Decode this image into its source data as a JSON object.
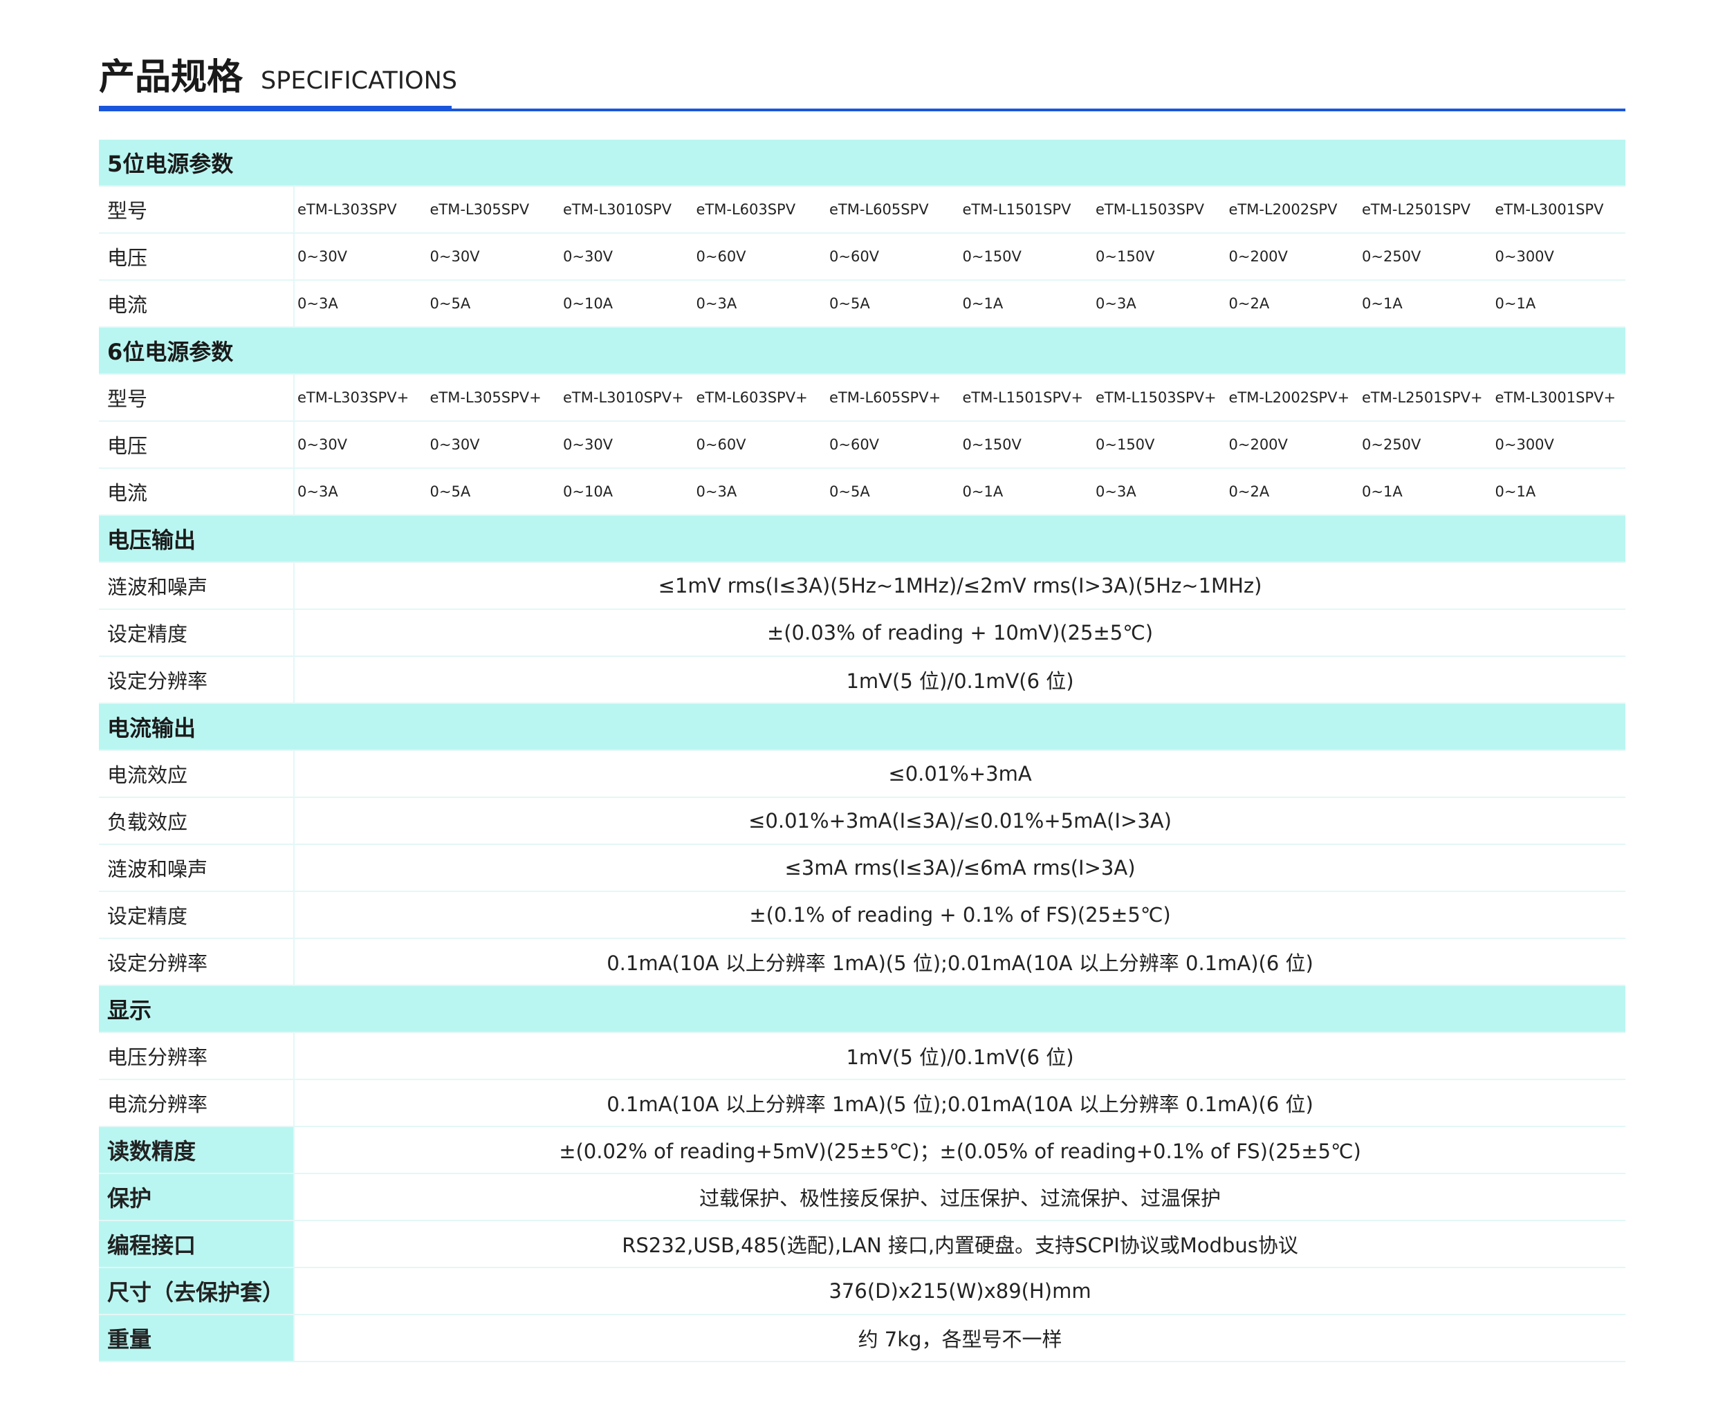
{
  "header": {
    "title_cn": "产品规格",
    "title_en": "SPECIFICATIONS",
    "accent": "#1a56db",
    "section_bg": "#baf6f1"
  },
  "five": {
    "title": "5位电源参数",
    "labels": [
      "型号",
      "电压",
      "电流"
    ],
    "models": [
      "eTM-L303SPV",
      "eTM-L305SPV",
      "eTM-L3010SPV",
      "eTM-L603SPV",
      "eTM-L605SPV",
      "eTM-L1501SPV",
      "eTM-L1503SPV",
      "eTM-L2002SPV",
      "eTM-L2501SPV",
      "eTM-L3001SPV"
    ],
    "voltage": [
      "0~30V",
      "0~30V",
      "0~30V",
      "0~60V",
      "0~60V",
      "0~150V",
      "0~150V",
      "0~200V",
      "0~250V",
      "0~300V"
    ],
    "current": [
      "0~3A",
      "0~5A",
      "0~10A",
      "0~3A",
      "0~5A",
      "0~1A",
      "0~3A",
      "0~2A",
      "0~1A",
      "0~1A"
    ]
  },
  "six": {
    "title": "6位电源参数",
    "labels": [
      "型号",
      "电压",
      "电流"
    ],
    "models": [
      "eTM-L303SPV+",
      "eTM-L305SPV+",
      "eTM-L3010SPV+",
      "eTM-L603SPV+",
      "eTM-L605SPV+",
      "eTM-L1501SPV+",
      "eTM-L1503SPV+",
      "eTM-L2002SPV+",
      "eTM-L2501SPV+",
      "eTM-L3001SPV+"
    ],
    "voltage": [
      "0~30V",
      "0~30V",
      "0~30V",
      "0~60V",
      "0~60V",
      "0~150V",
      "0~150V",
      "0~200V",
      "0~250V",
      "0~300V"
    ],
    "current": [
      "0~3A",
      "0~5A",
      "0~10A",
      "0~3A",
      "0~5A",
      "0~1A",
      "0~3A",
      "0~2A",
      "0~1A",
      "0~1A"
    ]
  },
  "sections": [
    {
      "title": "电压输出",
      "rows": [
        {
          "label": "涟波和噪声",
          "value": "≤1mV rms(I≤3A)(5Hz~1MHz)/≤2mV rms(I>3A)(5Hz~1MHz)"
        },
        {
          "label": "设定精度",
          "value": "±(0.03% of reading + 10mV)(25±5℃)"
        },
        {
          "label": "设定分辨率",
          "value": "1mV(5 位)/0.1mV(6 位)"
        }
      ]
    },
    {
      "title": "电流输出",
      "rows": [
        {
          "label": "电流效应",
          "value": "≤0.01%+3mA"
        },
        {
          "label": "负载效应",
          "value": "≤0.01%+3mA(I≤3A)/≤0.01%+5mA(I>3A)"
        },
        {
          "label": "涟波和噪声",
          "value": "≤3mA rms(I≤3A)/≤6mA rms(I>3A)"
        },
        {
          "label": "设定精度",
          "value": "±(0.1% of reading + 0.1%  of FS)(25±5℃)"
        },
        {
          "label": "设定分辨率",
          "value": "0.1mA(10A 以上分辨率 1mA)(5 位);0.01mA(10A 以上分辨率 0.1mA)(6 位)"
        }
      ]
    },
    {
      "title": "显示",
      "rows": [
        {
          "label": "电压分辨率",
          "value": "1mV(5 位)/0.1mV(6 位)"
        },
        {
          "label": "电流分辨率",
          "value": "0.1mA(10A 以上分辨率 1mA)(5 位);0.01mA(10A 以上分辨率 0.1mA)(6 位)"
        }
      ]
    }
  ],
  "misc": [
    {
      "label": "读数精度",
      "value": "±(0.02% of reading+5mV)(25±5℃)；±(0.05% of reading+0.1% of FS)(25±5℃)"
    },
    {
      "label": "保护",
      "value": "过载保护、极性接反保护、过压保护、过流保护、过温保护"
    },
    {
      "label": "编程接口",
      "value": "RS232,USB,485(选配),LAN 接口,内置硬盘。支持SCPI协议或Modbus协议"
    },
    {
      "label": "尺寸（去保护套）",
      "value": "376(D)x215(W)x89(H)mm"
    },
    {
      "label": "重量",
      "value": "约 7kg，各型号不一样"
    }
  ]
}
